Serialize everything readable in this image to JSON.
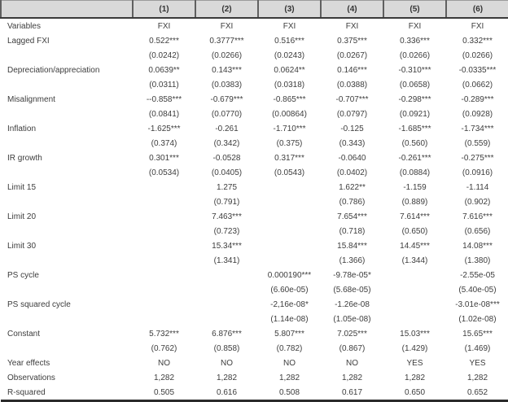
{
  "colors": {
    "header_bg": "#d9d9d9",
    "header_separator": "#606060",
    "rule_dark": "#2b2b2b",
    "text": "#3d3d3d",
    "background": "#ffffff"
  },
  "table": {
    "header": {
      "label": "",
      "cols": [
        "(1)",
        "(2)",
        "(3)",
        "(4)",
        "(5)",
        "(6)"
      ]
    },
    "rows": [
      {
        "label": "Variables",
        "cells": [
          "FXI",
          "FXI",
          "FXI",
          "FXI",
          "FXI",
          "FXI"
        ]
      },
      {
        "label": "Lagged FXI",
        "cells": [
          "0.522***",
          "0.3777***",
          "0.516***",
          "0.375***",
          "0.336***",
          "0.332***"
        ]
      },
      {
        "label": "",
        "cells": [
          "(0.0242)",
          "(0.0266)",
          "(0.0243)",
          "(0.0267)",
          "(0.0266)",
          "(0.0266)"
        ]
      },
      {
        "label": "Depreciation/appreciation",
        "cells": [
          "0.0639**",
          "0.143***",
          "0.0624**",
          "0.146***",
          "-0.310***",
          "-0.0335***"
        ]
      },
      {
        "label": "",
        "cells": [
          "(0.0311)",
          "(0.0383)",
          "(0.0318)",
          "(0.0388)",
          "(0.0658)",
          "(0.0662)"
        ]
      },
      {
        "label": "Misalignment",
        "cells": [
          "--0.858***",
          "-0.679***",
          "-0.865***",
          "-0.707***",
          "-0.298***",
          "-0.289***"
        ]
      },
      {
        "label": "",
        "cells": [
          "(0.0841)",
          "(0.0770)",
          "(0.00864)",
          "(0.0797)",
          "(0.0921)",
          "(0.0928)"
        ]
      },
      {
        "label": "Inflation",
        "cells": [
          "-1.625***",
          "-0.261",
          "-1.710***",
          "-0.125",
          "-1.685***",
          "-1.734***"
        ]
      },
      {
        "label": "",
        "cells": [
          "(0.374)",
          "(0.342)",
          "(0.375)",
          "(0.343)",
          "(0.560)",
          "(0.559)"
        ]
      },
      {
        "label": "IR growth",
        "cells": [
          "0.301***",
          "-0.0528",
          "0.317***",
          "-0.0640",
          "-0.261***",
          "-0.275***"
        ]
      },
      {
        "label": "",
        "cells": [
          "(0.0534)",
          "(0.0405)",
          "(0.0543)",
          "(0.0402)",
          "(0.0884)",
          "(0.0916)"
        ]
      },
      {
        "label": "Limit 15",
        "cells": [
          "",
          "1.275",
          "",
          "1.622**",
          "-1.159",
          "-1.114"
        ]
      },
      {
        "label": "",
        "cells": [
          "",
          "(0.791)",
          "",
          "(0.786)",
          "(0.889)",
          "(0.902)"
        ]
      },
      {
        "label": "Limit 20",
        "cells": [
          "",
          "7.463***",
          "",
          "7.654***",
          "7.614***",
          "7.616***"
        ]
      },
      {
        "label": "",
        "cells": [
          "",
          "(0.723)",
          "",
          "(0.718)",
          "(0.650)",
          "(0.656)"
        ]
      },
      {
        "label": "Limit 30",
        "cells": [
          "",
          "15.34***",
          "",
          "15.84***",
          "14.45***",
          "14.08***"
        ]
      },
      {
        "label": "",
        "cells": [
          "",
          "(1.341)",
          "",
          "(1.366)",
          "(1.344)",
          "(1.380)"
        ]
      },
      {
        "label": "PS cycle",
        "cells": [
          "",
          "",
          "0.000190***",
          "-9.78e-05*",
          "",
          "-2.55e-05"
        ]
      },
      {
        "label": "",
        "cells": [
          "",
          "",
          "(6.60e-05)",
          "(5.68e-05)",
          "",
          "(5.40e-05)"
        ]
      },
      {
        "label": "PS squared cycle",
        "cells": [
          "",
          "",
          "-2,16e-08*",
          "-1.26e-08",
          "",
          "-3.01e-08***"
        ]
      },
      {
        "label": "",
        "cells": [
          "",
          "",
          "(1.14e-08)",
          "(1.05e-08)",
          "",
          "(1.02e-08)"
        ]
      },
      {
        "label": "Constant",
        "cells": [
          "5.732***",
          "6.876***",
          "5.807***",
          "7.025***",
          "15.03***",
          "15.65***"
        ]
      },
      {
        "label": "",
        "cells": [
          "(0.762)",
          "(0.858)",
          "(0.782)",
          "(0.867)",
          "(1.429)",
          "(1.469)"
        ]
      },
      {
        "label": "Year effects",
        "cells": [
          "NO",
          "NO",
          "NO",
          "NO",
          "YES",
          "YES"
        ]
      },
      {
        "label": "Observations",
        "cells": [
          "1,282",
          "1,282",
          "1,282",
          "1,282",
          "1,282",
          "1,282"
        ]
      },
      {
        "label": "R-squared",
        "cells": [
          "0.505",
          "0.616",
          "0.508",
          "0.617",
          "0.650",
          "0.652"
        ]
      }
    ]
  }
}
